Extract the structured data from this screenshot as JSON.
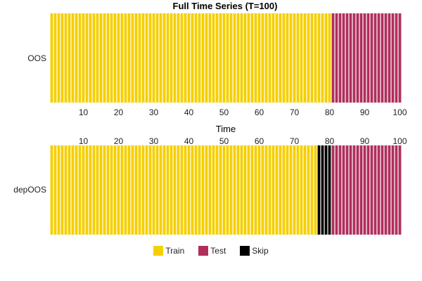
{
  "chart_data": {
    "type": "bar",
    "title": "Full Time Series (T=100)",
    "xlabel": "Time",
    "xlim": [
      1,
      100
    ],
    "x_ticks": [
      10,
      20,
      30,
      40,
      50,
      60,
      70,
      80,
      90,
      100
    ],
    "rows": [
      {
        "label": "OOS",
        "segments": [
          {
            "category": "Train",
            "from": 1,
            "to": 80
          },
          {
            "category": "Test",
            "from": 81,
            "to": 100
          }
        ]
      },
      {
        "label": "depOOS",
        "segments": [
          {
            "category": "Train",
            "from": 1,
            "to": 76
          },
          {
            "category": "Skip",
            "from": 77,
            "to": 80
          },
          {
            "category": "Test",
            "from": 81,
            "to": 100
          }
        ]
      }
    ],
    "legend": {
      "placement": "bottom",
      "items": [
        {
          "label": "Train",
          "color": "#f5cf00"
        },
        {
          "label": "Test",
          "color": "#b02e5c"
        },
        {
          "label": "Skip",
          "color": "#000000"
        }
      ]
    }
  }
}
